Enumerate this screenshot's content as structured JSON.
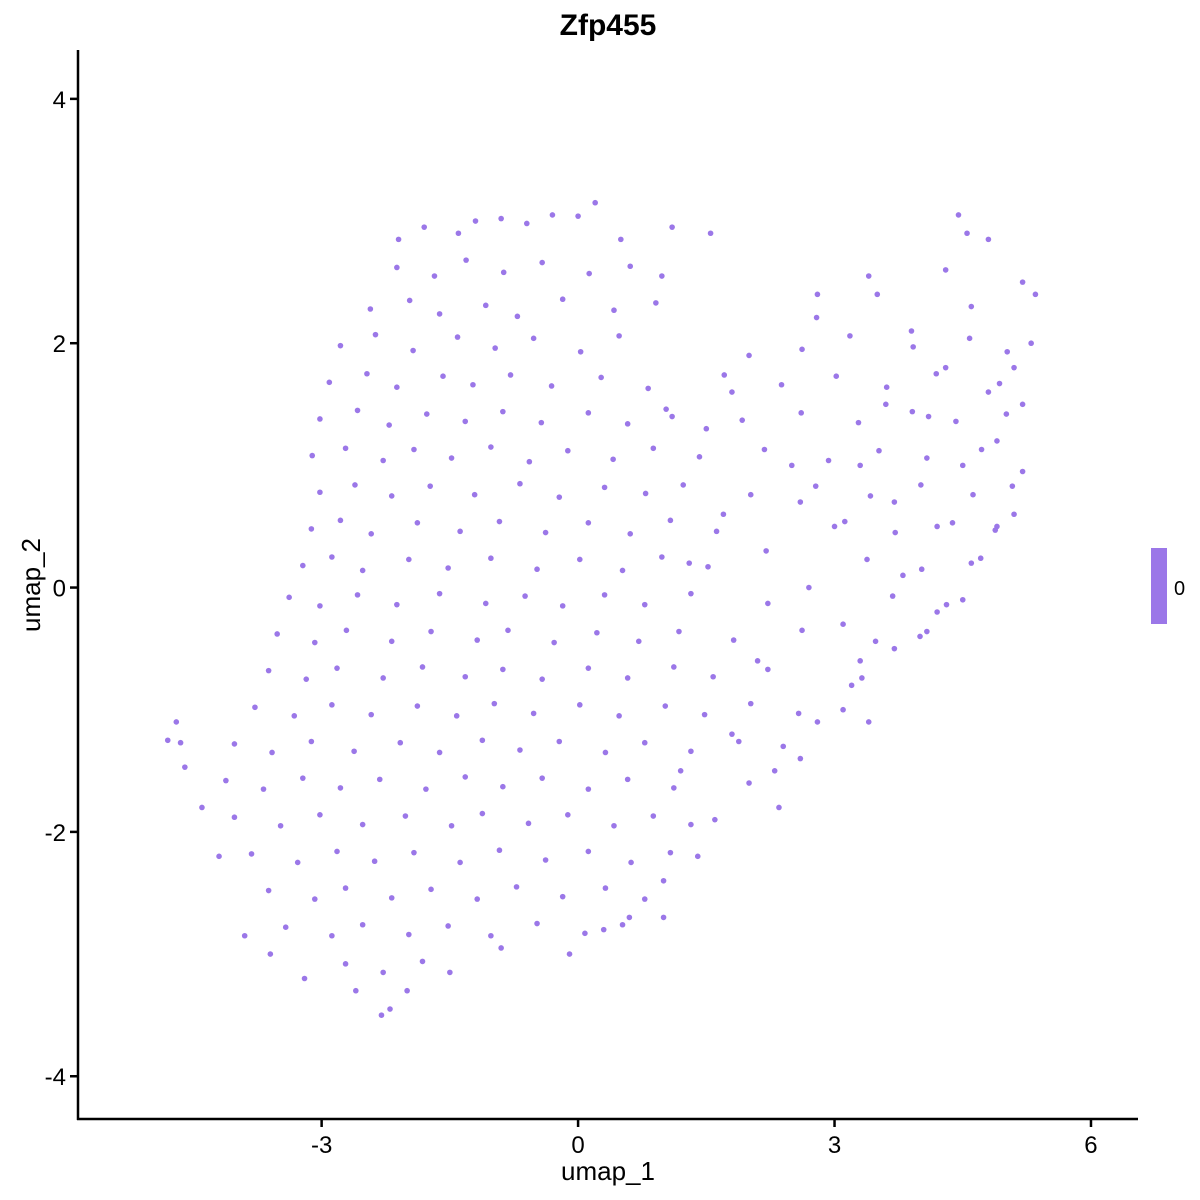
{
  "chart_data": {
    "type": "scatter",
    "title": "Zfp455",
    "xlabel": "umap_1",
    "ylabel": "umap_2",
    "xlim": [
      -5.85,
      6.55
    ],
    "ylim": [
      -4.35,
      4.4
    ],
    "xticks": [
      -3,
      0,
      3,
      6
    ],
    "yticks": [
      -4,
      -2,
      0,
      2,
      4
    ],
    "grid": false,
    "point_color": "#9b77e8",
    "legend": {
      "position": "right",
      "type": "colorbar",
      "labels": [
        "0"
      ],
      "color": "#9b77e8"
    },
    "points": [
      [
        -4.8,
        -1.25
      ],
      [
        -4.7,
        -1.1
      ],
      [
        -4.65,
        -1.27
      ],
      [
        -4.6,
        -1.47
      ],
      [
        -4.4,
        -1.8
      ],
      [
        -2.1,
        2.85
      ],
      [
        -1.8,
        2.95
      ],
      [
        -1.4,
        2.9
      ],
      [
        -1.2,
        3.0
      ],
      [
        -0.9,
        3.02
      ],
      [
        -0.6,
        2.98
      ],
      [
        -0.3,
        3.05
      ],
      [
        0.0,
        3.04
      ],
      [
        0.2,
        3.15
      ],
      [
        0.5,
        2.85
      ],
      [
        1.1,
        2.95
      ],
      [
        1.55,
        2.9
      ],
      [
        -2.3,
        -3.5
      ],
      [
        -2.2,
        -3.45
      ],
      [
        -2.0,
        -3.3
      ],
      [
        -2.6,
        -3.3
      ],
      [
        -1.5,
        -3.15
      ],
      [
        -3.2,
        -3.2
      ],
      [
        -3.6,
        -3.0
      ],
      [
        -3.9,
        -2.85
      ],
      [
        -4.2,
        -2.2
      ],
      [
        -0.1,
        -3.0
      ],
      [
        0.3,
        -2.8
      ],
      [
        0.6,
        -2.7
      ],
      [
        1.0,
        -2.7
      ],
      [
        -0.9,
        -2.95
      ],
      [
        4.45,
        3.05
      ],
      [
        4.55,
        2.9
      ],
      [
        4.8,
        2.85
      ],
      [
        4.3,
        2.6
      ],
      [
        3.4,
        2.55
      ],
      [
        2.8,
        2.4
      ],
      [
        5.2,
        2.5
      ],
      [
        5.35,
        2.4
      ],
      [
        5.3,
        2.0
      ],
      [
        5.1,
        1.8
      ],
      [
        5.2,
        1.5
      ],
      [
        5.2,
        0.95
      ],
      [
        5.1,
        0.6
      ],
      [
        4.9,
        0.5
      ],
      [
        4.6,
        0.2
      ],
      [
        4.5,
        -0.1
      ],
      [
        4.2,
        -0.2
      ],
      [
        4.0,
        -0.4
      ],
      [
        3.7,
        -0.5
      ],
      [
        3.3,
        -0.6
      ],
      [
        3.2,
        -0.8
      ],
      [
        3.1,
        -1.0
      ],
      [
        2.8,
        -1.1
      ],
      [
        2.4,
        -1.3
      ],
      [
        2.6,
        -1.4
      ],
      [
        2.3,
        -1.5
      ],
      [
        2.0,
        -1.6
      ],
      [
        2.35,
        -1.8
      ],
      [
        1.6,
        -1.9
      ],
      [
        1.4,
        -2.2
      ],
      [
        1.0,
        -2.4
      ],
      [
        3.4,
        -1.1
      ],
      [
        2.7,
        0.0
      ],
      [
        3.0,
        0.5
      ],
      [
        2.5,
        1.0
      ],
      [
        2.0,
        1.9
      ],
      [
        1.8,
        1.6
      ],
      [
        1.5,
        1.3
      ],
      [
        1.1,
        1.4
      ],
      [
        3.5,
        2.4
      ],
      [
        3.9,
        2.1
      ],
      [
        4.1,
        1.4
      ],
      [
        4.5,
        1.0
      ],
      [
        4.8,
        1.6
      ],
      [
        4.6,
        2.3
      ],
      [
        3.6,
        1.5
      ],
      [
        3.3,
        1.0
      ],
      [
        3.7,
        0.7
      ],
      [
        4.2,
        0.5
      ],
      [
        3.8,
        0.1
      ],
      [
        3.1,
        -0.3
      ],
      [
        2.2,
        0.3
      ],
      [
        1.7,
        0.6
      ],
      [
        1.3,
        0.2
      ],
      [
        2.1,
        -0.6
      ],
      [
        1.8,
        -1.2
      ],
      [
        1.2,
        -1.5
      ],
      [
        2.6,
        0.7
      ],
      [
        4.9,
        1.2
      ],
      [
        4.3,
        1.8
      ],
      [
        -2.12,
        2.62
      ],
      [
        -1.68,
        2.55
      ],
      [
        -1.31,
        2.68
      ],
      [
        -0.87,
        2.58
      ],
      [
        -0.42,
        2.66
      ],
      [
        0.13,
        2.57
      ],
      [
        0.61,
        2.63
      ],
      [
        0.98,
        2.55
      ],
      [
        -2.43,
        2.28
      ],
      [
        -1.97,
        2.35
      ],
      [
        -1.62,
        2.24
      ],
      [
        -1.08,
        2.31
      ],
      [
        -0.71,
        2.22
      ],
      [
        -0.18,
        2.36
      ],
      [
        0.42,
        2.27
      ],
      [
        0.91,
        2.33
      ],
      [
        2.79,
        2.21
      ],
      [
        -2.78,
        1.98
      ],
      [
        -2.37,
        2.07
      ],
      [
        -1.93,
        1.94
      ],
      [
        -1.41,
        2.05
      ],
      [
        -0.97,
        1.96
      ],
      [
        -0.52,
        2.04
      ],
      [
        0.03,
        1.93
      ],
      [
        0.48,
        2.06
      ],
      [
        2.62,
        1.95
      ],
      [
        3.18,
        2.06
      ],
      [
        3.92,
        1.97
      ],
      [
        4.58,
        2.04
      ],
      [
        5.02,
        1.93
      ],
      [
        -2.91,
        1.68
      ],
      [
        -2.47,
        1.75
      ],
      [
        -2.12,
        1.64
      ],
      [
        -1.58,
        1.73
      ],
      [
        -1.23,
        1.66
      ],
      [
        -0.79,
        1.74
      ],
      [
        -0.31,
        1.65
      ],
      [
        0.27,
        1.72
      ],
      [
        0.82,
        1.63
      ],
      [
        1.71,
        1.74
      ],
      [
        2.38,
        1.66
      ],
      [
        3.02,
        1.73
      ],
      [
        3.61,
        1.64
      ],
      [
        4.19,
        1.75
      ],
      [
        4.93,
        1.67
      ],
      [
        -3.02,
        1.38
      ],
      [
        -2.58,
        1.45
      ],
      [
        -2.21,
        1.33
      ],
      [
        -1.77,
        1.42
      ],
      [
        -1.32,
        1.36
      ],
      [
        -0.88,
        1.44
      ],
      [
        -0.43,
        1.35
      ],
      [
        0.12,
        1.43
      ],
      [
        0.58,
        1.34
      ],
      [
        1.03,
        1.46
      ],
      [
        1.92,
        1.37
      ],
      [
        2.61,
        1.43
      ],
      [
        3.28,
        1.35
      ],
      [
        3.91,
        1.44
      ],
      [
        4.42,
        1.36
      ],
      [
        5.01,
        1.42
      ],
      [
        -3.11,
        1.08
      ],
      [
        -2.72,
        1.14
      ],
      [
        -2.28,
        1.04
      ],
      [
        -1.92,
        1.13
      ],
      [
        -1.48,
        1.06
      ],
      [
        -1.02,
        1.15
      ],
      [
        -0.57,
        1.03
      ],
      [
        -0.12,
        1.12
      ],
      [
        0.41,
        1.05
      ],
      [
        0.88,
        1.14
      ],
      [
        1.42,
        1.07
      ],
      [
        2.18,
        1.13
      ],
      [
        2.93,
        1.04
      ],
      [
        3.52,
        1.12
      ],
      [
        4.08,
        1.06
      ],
      [
        4.72,
        1.13
      ],
      [
        -3.02,
        0.78
      ],
      [
        -2.61,
        0.84
      ],
      [
        -2.18,
        0.75
      ],
      [
        -1.73,
        0.83
      ],
      [
        -1.21,
        0.76
      ],
      [
        -0.68,
        0.85
      ],
      [
        -0.22,
        0.74
      ],
      [
        0.31,
        0.82
      ],
      [
        0.79,
        0.77
      ],
      [
        1.23,
        0.84
      ],
      [
        2.02,
        0.76
      ],
      [
        2.78,
        0.83
      ],
      [
        3.42,
        0.75
      ],
      [
        4.01,
        0.84
      ],
      [
        4.62,
        0.76
      ],
      [
        5.08,
        0.83
      ],
      [
        -3.12,
        0.48
      ],
      [
        -2.78,
        0.55
      ],
      [
        -2.42,
        0.44
      ],
      [
        -1.88,
        0.53
      ],
      [
        -1.38,
        0.46
      ],
      [
        -0.92,
        0.54
      ],
      [
        -0.38,
        0.45
      ],
      [
        0.12,
        0.53
      ],
      [
        0.61,
        0.44
      ],
      [
        1.08,
        0.55
      ],
      [
        1.62,
        0.46
      ],
      [
        3.12,
        0.54
      ],
      [
        3.71,
        0.45
      ],
      [
        4.38,
        0.53
      ],
      [
        4.88,
        0.47
      ],
      [
        -3.22,
        0.18
      ],
      [
        -2.88,
        0.25
      ],
      [
        -2.52,
        0.14
      ],
      [
        -1.98,
        0.23
      ],
      [
        -1.52,
        0.16
      ],
      [
        -1.02,
        0.24
      ],
      [
        -0.48,
        0.15
      ],
      [
        0.02,
        0.23
      ],
      [
        0.52,
        0.14
      ],
      [
        0.98,
        0.25
      ],
      [
        1.52,
        0.17
      ],
      [
        3.38,
        0.23
      ],
      [
        4.02,
        0.15
      ],
      [
        4.71,
        0.24
      ],
      [
        -3.38,
        -0.08
      ],
      [
        -3.02,
        -0.15
      ],
      [
        -2.58,
        -0.06
      ],
      [
        -2.12,
        -0.14
      ],
      [
        -1.62,
        -0.05
      ],
      [
        -1.08,
        -0.13
      ],
      [
        -0.62,
        -0.07
      ],
      [
        -0.18,
        -0.15
      ],
      [
        0.31,
        -0.06
      ],
      [
        0.78,
        -0.14
      ],
      [
        1.32,
        -0.05
      ],
      [
        2.22,
        -0.13
      ],
      [
        3.68,
        -0.07
      ],
      [
        4.31,
        -0.14
      ],
      [
        -3.52,
        -0.38
      ],
      [
        -3.08,
        -0.45
      ],
      [
        -2.71,
        -0.35
      ],
      [
        -2.18,
        -0.44
      ],
      [
        -1.72,
        -0.36
      ],
      [
        -1.18,
        -0.43
      ],
      [
        -0.82,
        -0.35
      ],
      [
        -0.28,
        -0.45
      ],
      [
        0.22,
        -0.37
      ],
      [
        0.71,
        -0.44
      ],
      [
        1.18,
        -0.36
      ],
      [
        1.82,
        -0.43
      ],
      [
        2.62,
        -0.35
      ],
      [
        3.48,
        -0.44
      ],
      [
        4.08,
        -0.36
      ],
      [
        -3.62,
        -0.68
      ],
      [
        -3.18,
        -0.75
      ],
      [
        -2.82,
        -0.66
      ],
      [
        -2.28,
        -0.74
      ],
      [
        -1.82,
        -0.65
      ],
      [
        -1.32,
        -0.73
      ],
      [
        -0.88,
        -0.67
      ],
      [
        -0.42,
        -0.75
      ],
      [
        0.12,
        -0.66
      ],
      [
        0.58,
        -0.74
      ],
      [
        1.12,
        -0.65
      ],
      [
        1.58,
        -0.73
      ],
      [
        2.22,
        -0.67
      ],
      [
        3.32,
        -0.74
      ],
      [
        -3.78,
        -0.98
      ],
      [
        -3.32,
        -1.05
      ],
      [
        -2.88,
        -0.96
      ],
      [
        -2.42,
        -1.04
      ],
      [
        -1.88,
        -0.97
      ],
      [
        -1.42,
        -1.05
      ],
      [
        -0.98,
        -0.95
      ],
      [
        -0.52,
        -1.03
      ],
      [
        0.02,
        -0.96
      ],
      [
        0.48,
        -1.05
      ],
      [
        1.02,
        -0.97
      ],
      [
        1.48,
        -1.04
      ],
      [
        2.02,
        -0.95
      ],
      [
        2.58,
        -1.03
      ],
      [
        -4.02,
        -1.28
      ],
      [
        -3.58,
        -1.35
      ],
      [
        -3.12,
        -1.26
      ],
      [
        -2.62,
        -1.34
      ],
      [
        -2.08,
        -1.27
      ],
      [
        -1.62,
        -1.35
      ],
      [
        -1.12,
        -1.25
      ],
      [
        -0.68,
        -1.33
      ],
      [
        -0.22,
        -1.26
      ],
      [
        0.32,
        -1.35
      ],
      [
        0.78,
        -1.27
      ],
      [
        1.32,
        -1.34
      ],
      [
        1.88,
        -1.26
      ],
      [
        -4.12,
        -1.58
      ],
      [
        -3.68,
        -1.65
      ],
      [
        -3.22,
        -1.56
      ],
      [
        -2.78,
        -1.64
      ],
      [
        -2.32,
        -1.57
      ],
      [
        -1.78,
        -1.65
      ],
      [
        -1.32,
        -1.55
      ],
      [
        -0.88,
        -1.63
      ],
      [
        -0.42,
        -1.56
      ],
      [
        0.12,
        -1.65
      ],
      [
        0.58,
        -1.57
      ],
      [
        1.12,
        -1.64
      ],
      [
        -4.02,
        -1.88
      ],
      [
        -3.48,
        -1.95
      ],
      [
        -3.02,
        -1.86
      ],
      [
        -2.52,
        -1.94
      ],
      [
        -2.02,
        -1.87
      ],
      [
        -1.48,
        -1.95
      ],
      [
        -1.12,
        -1.85
      ],
      [
        -0.58,
        -1.93
      ],
      [
        -0.12,
        -1.86
      ],
      [
        0.42,
        -1.95
      ],
      [
        0.88,
        -1.87
      ],
      [
        1.32,
        -1.94
      ],
      [
        -3.82,
        -2.18
      ],
      [
        -3.28,
        -2.25
      ],
      [
        -2.82,
        -2.16
      ],
      [
        -2.38,
        -2.24
      ],
      [
        -1.92,
        -2.17
      ],
      [
        -1.38,
        -2.25
      ],
      [
        -0.92,
        -2.15
      ],
      [
        -0.38,
        -2.23
      ],
      [
        0.12,
        -2.16
      ],
      [
        0.62,
        -2.25
      ],
      [
        1.08,
        -2.17
      ],
      [
        -3.62,
        -2.48
      ],
      [
        -3.08,
        -2.55
      ],
      [
        -2.72,
        -2.46
      ],
      [
        -2.18,
        -2.54
      ],
      [
        -1.72,
        -2.47
      ],
      [
        -1.18,
        -2.55
      ],
      [
        -0.72,
        -2.45
      ],
      [
        -0.18,
        -2.53
      ],
      [
        0.32,
        -2.46
      ],
      [
        0.78,
        -2.55
      ],
      [
        -3.42,
        -2.78
      ],
      [
        -2.88,
        -2.85
      ],
      [
        -2.52,
        -2.76
      ],
      [
        -1.98,
        -2.84
      ],
      [
        -1.52,
        -2.77
      ],
      [
        -1.02,
        -2.85
      ],
      [
        -0.48,
        -2.75
      ],
      [
        0.08,
        -2.83
      ],
      [
        0.52,
        -2.76
      ],
      [
        -2.72,
        -3.08
      ],
      [
        -2.28,
        -3.15
      ],
      [
        -1.82,
        -3.06
      ]
    ]
  }
}
